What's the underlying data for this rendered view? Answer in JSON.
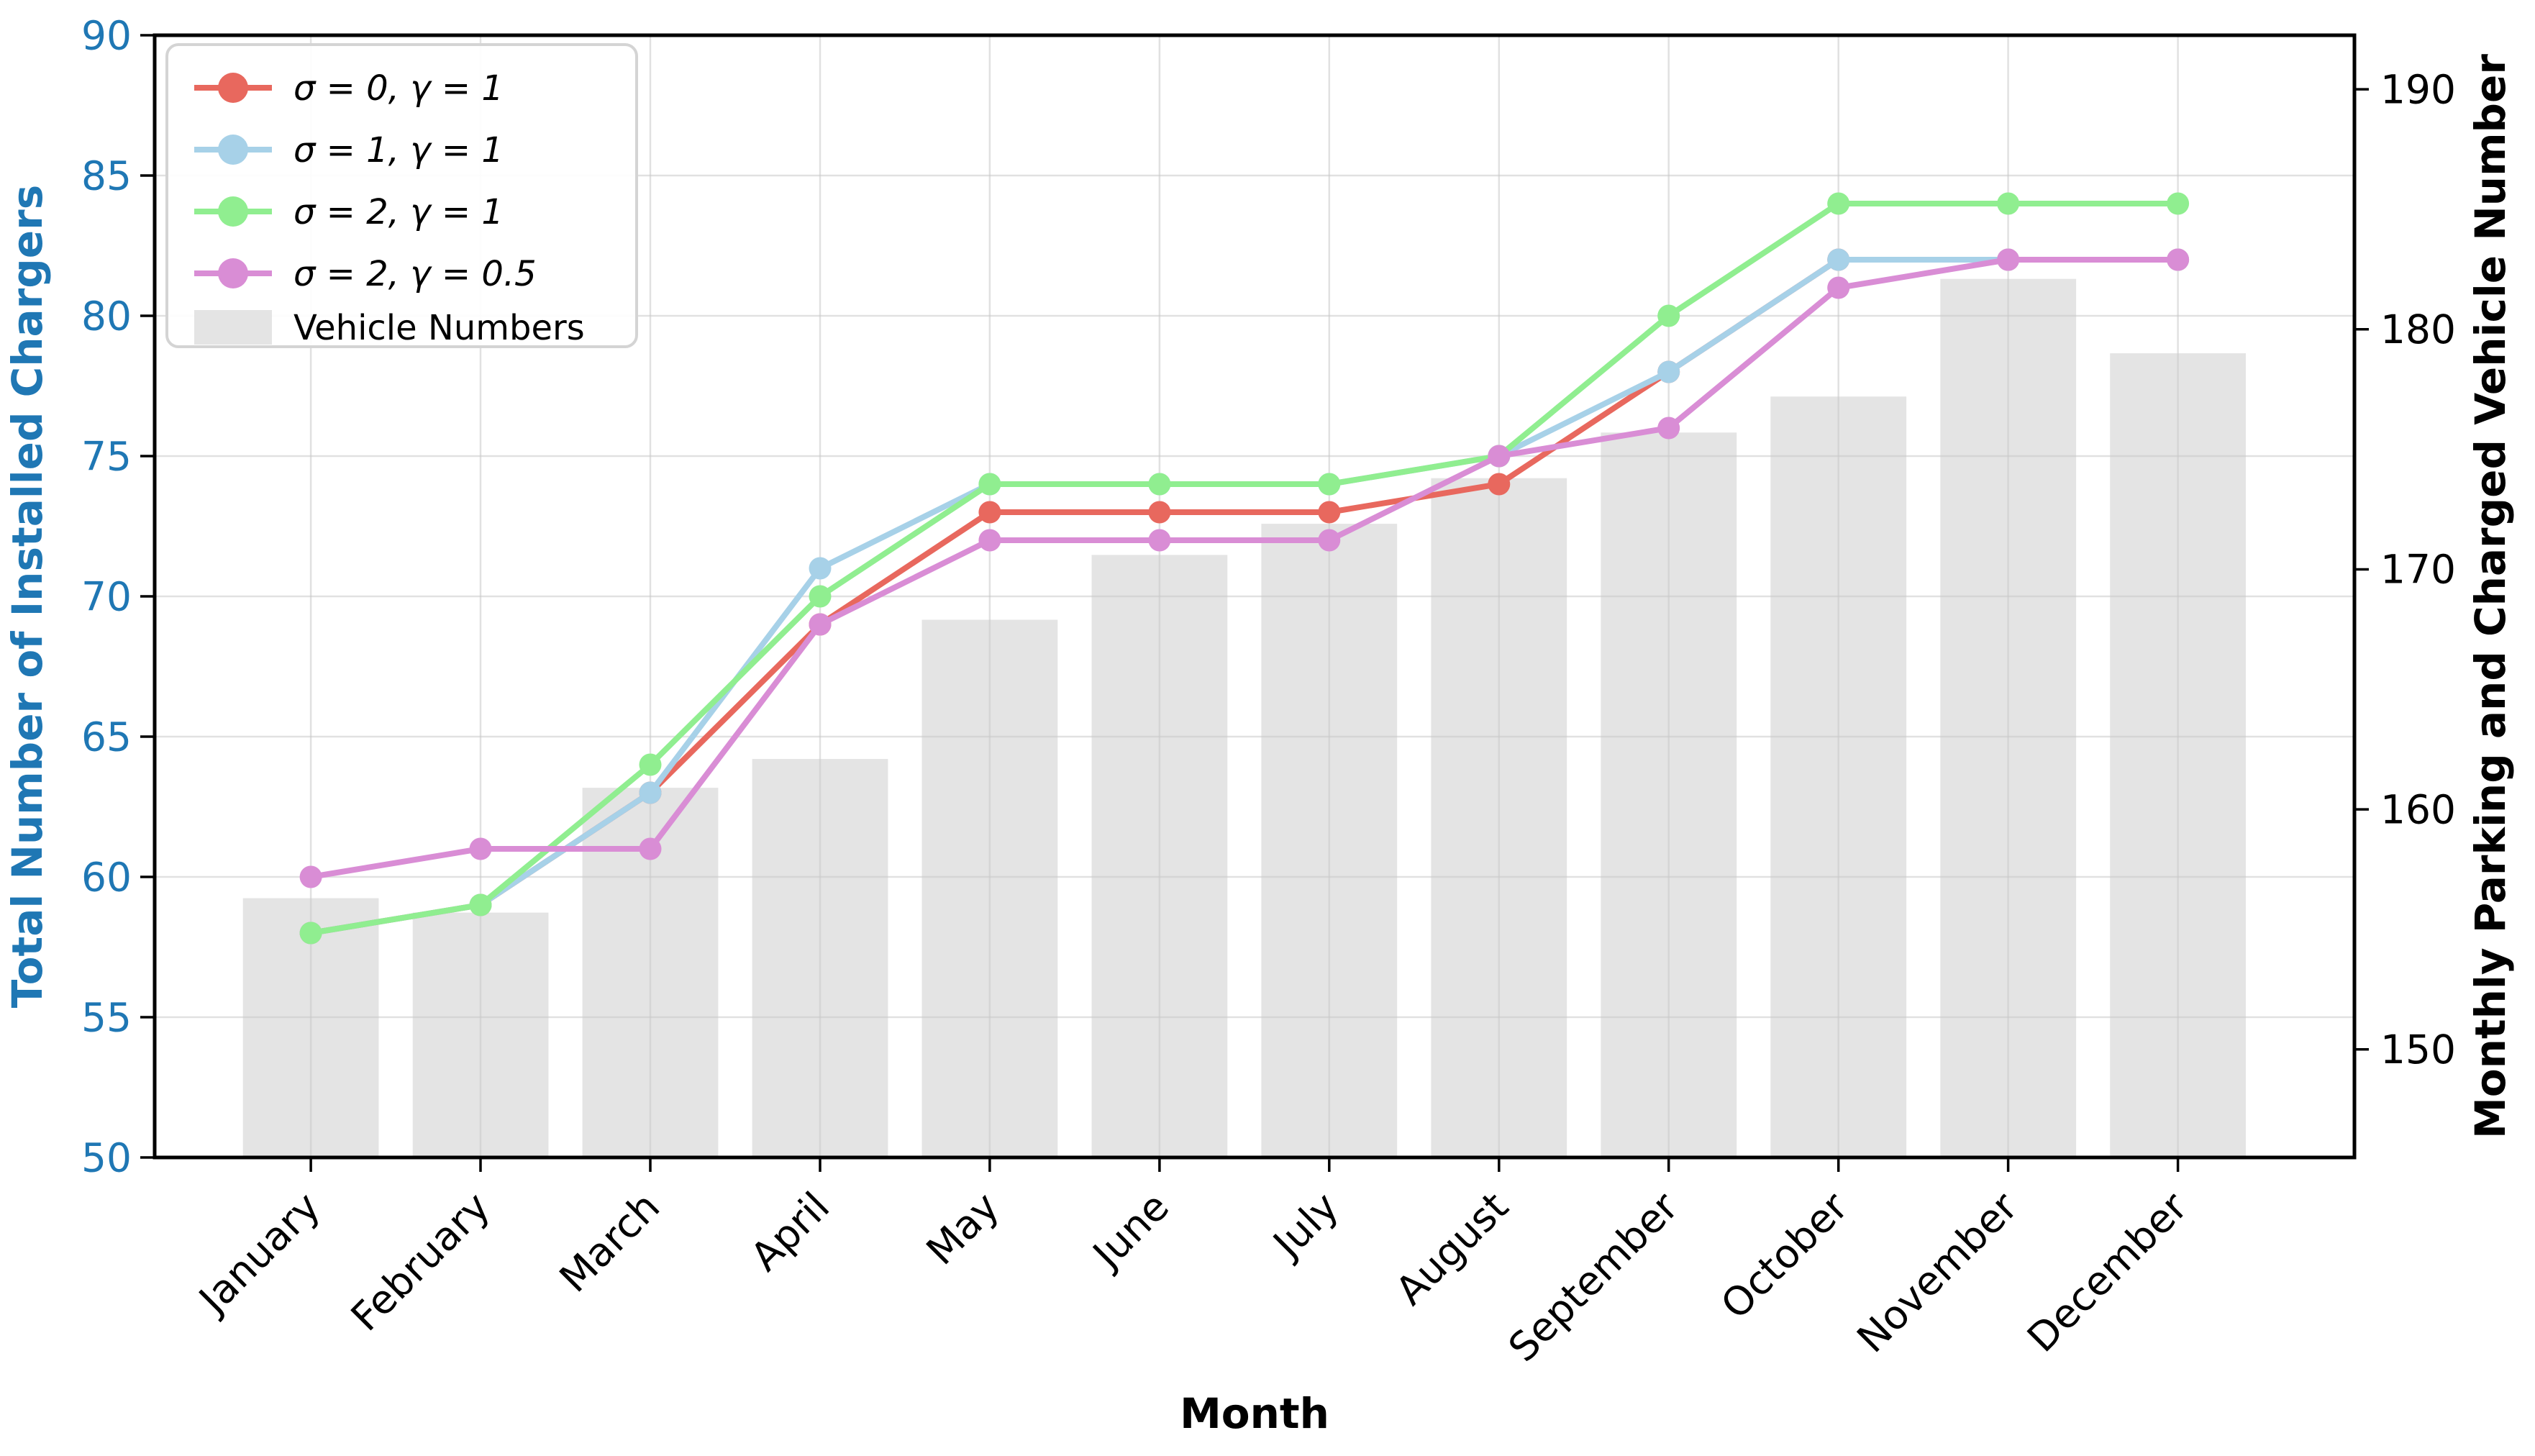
{
  "chart_data": {
    "type": "line+bar",
    "categories": [
      "January",
      "February",
      "March",
      "April",
      "May",
      "June",
      "July",
      "August",
      "September",
      "October",
      "November",
      "December"
    ],
    "series": [
      {
        "name": "σ = 0, γ = 1",
        "color": "#e8685e",
        "values": [
          58,
          59,
          63,
          69,
          73,
          73,
          73,
          74,
          78,
          82,
          82,
          82
        ]
      },
      {
        "name": "σ = 1, γ = 1",
        "color": "#a7d1e8",
        "values": [
          58,
          59,
          63,
          71,
          74,
          74,
          74,
          75,
          78,
          82,
          82,
          82
        ]
      },
      {
        "name": "σ = 2, γ = 1",
        "color": "#90ee90",
        "values": [
          58,
          59,
          64,
          70,
          74,
          74,
          74,
          75,
          80,
          84,
          84,
          84
        ]
      },
      {
        "name": "σ = 2, γ = 0.5",
        "color": "#d98dd5",
        "values": [
          60,
          61,
          61,
          69,
          72,
          72,
          72,
          75,
          76,
          81,
          82,
          82
        ]
      }
    ],
    "bars": {
      "name": "Vehicle Numbers",
      "color": "#e4e4e4",
      "values": [
        156.3,
        155.7,
        160.9,
        162.1,
        167.9,
        170.6,
        171.9,
        173.8,
        175.7,
        177.2,
        182.1,
        179.0
      ]
    },
    "left_axis": {
      "label": "Total Number of Installed Chargers",
      "color": "#1f77b4",
      "ticks": [
        50,
        55,
        60,
        65,
        70,
        75,
        80,
        85,
        90
      ],
      "lim": [
        50,
        90
      ]
    },
    "right_axis": {
      "label": "Monthly Parking and Charged Vehicle Number",
      "color": "#000000",
      "ticks": [
        150,
        160,
        170,
        180,
        190
      ],
      "lim": [
        145.5,
        192.25
      ]
    },
    "x_axis": {
      "label": "Month"
    },
    "legend": {
      "position": "upper-left",
      "entries": [
        "σ = 0, γ = 1",
        "σ = 1, γ = 1",
        "σ = 2, γ = 1",
        "σ = 2, γ = 0.5",
        "Vehicle Numbers"
      ]
    },
    "grid": true
  }
}
